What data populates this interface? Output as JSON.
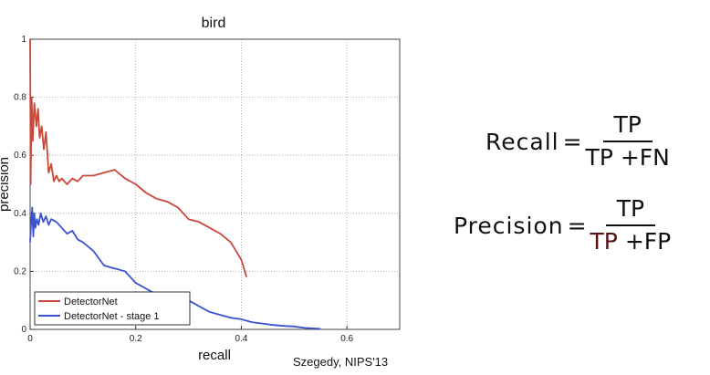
{
  "chart_data": {
    "type": "line",
    "title": "bird",
    "xlabel": "recall",
    "ylabel": "precision",
    "xlim": [
      0,
      0.7
    ],
    "ylim": [
      0,
      1
    ],
    "xticks": [
      "0",
      "0.2",
      "0.4",
      "0.6"
    ],
    "yticks": [
      "0",
      "0.2",
      "0.4",
      "0.6",
      "0.8",
      "1"
    ],
    "grid": true,
    "legend_position": "bottom-left",
    "series": [
      {
        "name": "DetectorNet",
        "color": "#c9483b",
        "x": [
          0,
          0.001,
          0.003,
          0.005,
          0.008,
          0.012,
          0.015,
          0.018,
          0.022,
          0.026,
          0.03,
          0.035,
          0.04,
          0.045,
          0.05,
          0.055,
          0.06,
          0.07,
          0.08,
          0.09,
          0.1,
          0.12,
          0.14,
          0.16,
          0.18,
          0.2,
          0.22,
          0.24,
          0.26,
          0.28,
          0.3,
          0.32,
          0.34,
          0.36,
          0.38,
          0.4,
          0.41
        ],
        "y": [
          1.0,
          0.5,
          0.8,
          0.65,
          0.78,
          0.7,
          0.76,
          0.66,
          0.7,
          0.62,
          0.68,
          0.54,
          0.57,
          0.51,
          0.53,
          0.51,
          0.52,
          0.5,
          0.52,
          0.51,
          0.53,
          0.53,
          0.54,
          0.55,
          0.52,
          0.5,
          0.47,
          0.45,
          0.44,
          0.42,
          0.38,
          0.37,
          0.35,
          0.33,
          0.3,
          0.24,
          0.18
        ]
      },
      {
        "name": "DetectorNet - stage 1",
        "color": "#3a52d1",
        "x": [
          0,
          0.002,
          0.004,
          0.006,
          0.008,
          0.01,
          0.013,
          0.016,
          0.02,
          0.025,
          0.03,
          0.035,
          0.04,
          0.05,
          0.06,
          0.07,
          0.08,
          0.09,
          0.1,
          0.12,
          0.14,
          0.16,
          0.18,
          0.2,
          0.22,
          0.24,
          0.26,
          0.28,
          0.3,
          0.32,
          0.34,
          0.36,
          0.38,
          0.4,
          0.42,
          0.44,
          0.46,
          0.48,
          0.5,
          0.52,
          0.55
        ],
        "y": [
          0.3,
          0.37,
          0.42,
          0.32,
          0.4,
          0.35,
          0.38,
          0.36,
          0.4,
          0.37,
          0.39,
          0.36,
          0.38,
          0.37,
          0.35,
          0.33,
          0.34,
          0.31,
          0.3,
          0.27,
          0.22,
          0.21,
          0.2,
          0.16,
          0.14,
          0.12,
          0.12,
          0.11,
          0.1,
          0.08,
          0.06,
          0.05,
          0.04,
          0.035,
          0.025,
          0.02,
          0.015,
          0.012,
          0.01,
          0.005,
          0.002
        ]
      }
    ]
  },
  "citation": "Szegedy, NIPS'13",
  "formulas": {
    "recall": {
      "lhs": "Recall",
      "eq": "=",
      "numerator": "TP",
      "den_a": "TP",
      "den_b": "+FN"
    },
    "precision": {
      "lhs": "Precision",
      "eq": "=",
      "numerator": "TP",
      "den_a": "TP",
      "den_b": "+FP"
    }
  },
  "colors": {
    "text": "#111111",
    "den_tp_precision": "#5a0f0f"
  }
}
